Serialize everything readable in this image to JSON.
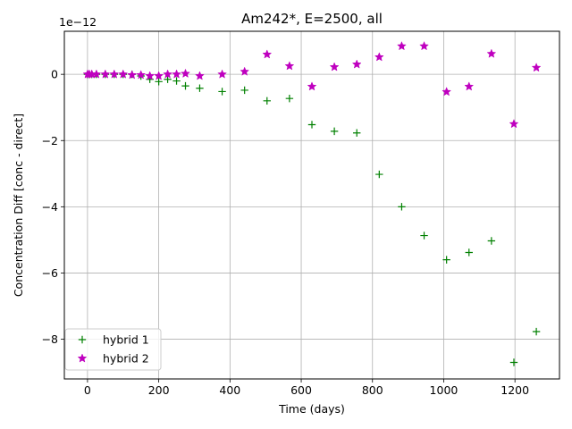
{
  "chart_data": {
    "type": "scatter",
    "title": "Am242*, E=2500, all",
    "xlabel": "Time (days)",
    "ylabel": "Concentration Diff [conc - direct]",
    "y_offset_label": "1e−12",
    "xlim": [
      -65,
      1325
    ],
    "ylim": [
      -9.2,
      1.3
    ],
    "xticks": [
      0,
      200,
      400,
      600,
      800,
      1000,
      1200
    ],
    "yticks": [
      -8,
      -6,
      -4,
      -2,
      0
    ],
    "grid": true,
    "legend": "lower-left",
    "series": [
      {
        "name": "hybrid 1",
        "marker": "plus",
        "color": "#008000",
        "x": [
          0,
          5,
          12,
          25,
          50,
          75,
          100,
          125,
          150,
          175,
          200,
          225,
          250,
          275,
          315,
          378,
          441,
          504,
          567,
          630,
          693,
          756,
          819,
          882,
          945,
          1008,
          1071,
          1134,
          1197,
          1260
        ],
        "y": [
          0,
          0,
          0,
          0,
          0,
          0,
          0,
          0,
          -0.05,
          -0.15,
          -0.22,
          -0.15,
          -0.2,
          -0.35,
          -0.42,
          -0.52,
          -0.48,
          -0.8,
          -0.73,
          -1.52,
          -1.72,
          -1.77,
          -3.02,
          -4.0,
          -4.87,
          -5.6,
          -5.38,
          -5.03,
          -8.7,
          -7.77
        ]
      },
      {
        "name": "hybrid 2",
        "marker": "star",
        "color": "#bf00bf",
        "x": [
          0,
          5,
          12,
          25,
          50,
          75,
          100,
          125,
          150,
          175,
          200,
          225,
          250,
          275,
          315,
          378,
          441,
          504,
          567,
          630,
          693,
          756,
          819,
          882,
          945,
          1008,
          1071,
          1134,
          1197,
          1260
        ],
        "y": [
          0,
          0,
          0,
          0,
          0,
          0,
          0,
          -0.02,
          -0.02,
          -0.05,
          -0.05,
          0,
          0,
          0.02,
          -0.05,
          0,
          0.08,
          0.6,
          0.25,
          -0.37,
          0.22,
          0.3,
          0.52,
          0.85,
          0.85,
          -0.53,
          -0.37,
          0.62,
          -1.5,
          0.2
        ]
      }
    ]
  }
}
